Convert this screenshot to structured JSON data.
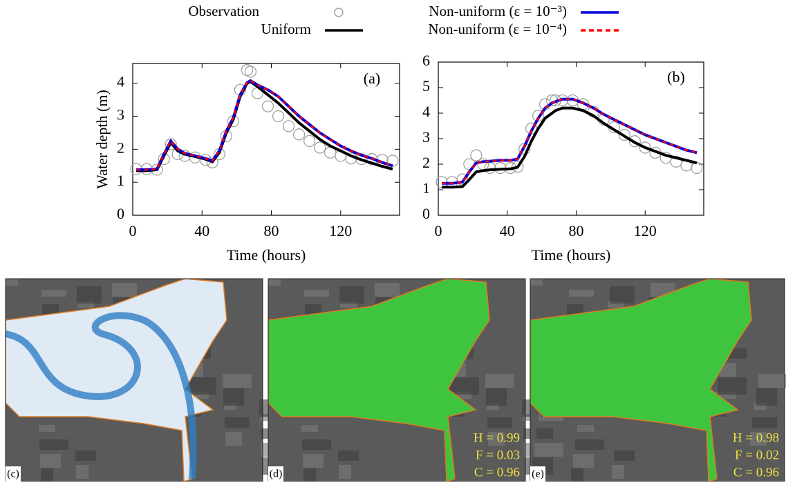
{
  "chart_data": [
    {
      "type": "line",
      "panel_label": "(a)",
      "y_label": "Water depth (m)",
      "x_label": "Time (hours)",
      "xlim": [
        0,
        154
      ],
      "xticks": [
        0,
        40,
        80,
        120
      ],
      "ylim": [
        0,
        4.6
      ],
      "yticks": [
        0,
        1,
        2,
        3,
        4
      ],
      "x": [
        2,
        8,
        14,
        18,
        22,
        26,
        30,
        36,
        42,
        46,
        50,
        54,
        58,
        62,
        66,
        68,
        72,
        78,
        84,
        90,
        96,
        102,
        108,
        114,
        120,
        126,
        132,
        138,
        144,
        150
      ],
      "series": [
        {
          "name": "Observation",
          "color": "#a0a0a0",
          "style": "markers",
          "values": [
            1.4,
            1.4,
            1.38,
            1.7,
            2.15,
            1.85,
            1.8,
            1.75,
            1.68,
            1.6,
            1.85,
            2.4,
            2.85,
            3.8,
            4.4,
            4.35,
            3.7,
            3.3,
            3.0,
            2.7,
            2.45,
            2.25,
            2.05,
            1.9,
            1.8,
            1.72,
            1.7,
            1.7,
            1.68,
            1.65
          ]
        },
        {
          "name": "Uniform",
          "color": "#000000",
          "style": "solid",
          "values": [
            1.35,
            1.35,
            1.38,
            1.8,
            2.2,
            1.95,
            1.85,
            1.78,
            1.7,
            1.62,
            1.9,
            2.5,
            2.9,
            3.6,
            4.0,
            4.05,
            3.9,
            3.65,
            3.4,
            3.1,
            2.8,
            2.55,
            2.3,
            2.1,
            1.95,
            1.8,
            1.68,
            1.58,
            1.48,
            1.4
          ]
        },
        {
          "name": "Non-uniform (ε = 10⁻³)",
          "color": "#0000dd",
          "style": "solid",
          "values": [
            1.38,
            1.38,
            1.4,
            1.85,
            2.25,
            2.0,
            1.88,
            1.8,
            1.72,
            1.65,
            1.95,
            2.55,
            2.95,
            3.65,
            4.02,
            4.08,
            3.95,
            3.8,
            3.6,
            3.3,
            3.0,
            2.75,
            2.5,
            2.3,
            2.1,
            1.95,
            1.82,
            1.72,
            1.6,
            1.5
          ]
        },
        {
          "name": "Non-uniform (ε = 10⁻⁴)",
          "color": "#ff0000",
          "style": "dashed",
          "values": [
            1.38,
            1.38,
            1.4,
            1.85,
            2.25,
            2.0,
            1.88,
            1.8,
            1.72,
            1.65,
            1.95,
            2.55,
            2.95,
            3.65,
            4.02,
            4.08,
            3.95,
            3.8,
            3.6,
            3.3,
            3.0,
            2.75,
            2.5,
            2.3,
            2.1,
            1.95,
            1.82,
            1.72,
            1.6,
            1.5
          ]
        }
      ]
    },
    {
      "type": "line",
      "panel_label": "(b)",
      "x_label": "Time (hours)",
      "xlim": [
        0,
        154
      ],
      "xticks": [
        0,
        40,
        80,
        120
      ],
      "ylim": [
        0,
        6
      ],
      "yticks": [
        0,
        1,
        2,
        3,
        4,
        5,
        6
      ],
      "x": [
        2,
        8,
        14,
        18,
        22,
        26,
        30,
        36,
        42,
        46,
        50,
        54,
        58,
        62,
        66,
        68,
        72,
        78,
        84,
        90,
        96,
        102,
        108,
        114,
        120,
        126,
        132,
        138,
        144,
        150
      ],
      "series": [
        {
          "name": "Observation",
          "color": "#a0a0a0",
          "style": "markers",
          "values": [
            1.3,
            1.3,
            1.4,
            2.0,
            2.35,
            2.0,
            1.85,
            1.85,
            1.85,
            1.9,
            2.6,
            3.4,
            3.9,
            4.35,
            4.5,
            4.5,
            4.5,
            4.5,
            4.35,
            4.05,
            3.75,
            3.45,
            3.15,
            2.9,
            2.65,
            2.45,
            2.25,
            2.1,
            1.95,
            1.85
          ]
        },
        {
          "name": "Uniform",
          "color": "#000000",
          "style": "solid",
          "values": [
            1.1,
            1.1,
            1.12,
            1.4,
            1.7,
            1.75,
            1.78,
            1.8,
            1.82,
            1.88,
            2.3,
            2.9,
            3.4,
            3.8,
            4.0,
            4.1,
            4.2,
            4.2,
            4.1,
            3.9,
            3.6,
            3.35,
            3.1,
            2.85,
            2.65,
            2.5,
            2.35,
            2.25,
            2.15,
            2.05
          ]
        },
        {
          "name": "Non-uniform (ε = 10⁻³)",
          "color": "#0000dd",
          "style": "solid",
          "values": [
            1.25,
            1.25,
            1.3,
            1.7,
            2.05,
            2.1,
            2.12,
            2.15,
            2.15,
            2.2,
            2.7,
            3.3,
            3.8,
            4.2,
            4.4,
            4.45,
            4.55,
            4.55,
            4.4,
            4.2,
            3.95,
            3.75,
            3.55,
            3.35,
            3.15,
            3.0,
            2.85,
            2.7,
            2.55,
            2.45
          ]
        },
        {
          "name": "Non-uniform (ε = 10⁻⁴)",
          "color": "#ff0000",
          "style": "dashed",
          "values": [
            1.25,
            1.25,
            1.3,
            1.7,
            2.05,
            2.1,
            2.12,
            2.15,
            2.15,
            2.2,
            2.7,
            3.3,
            3.8,
            4.2,
            4.4,
            4.45,
            4.55,
            4.55,
            4.4,
            4.2,
            3.95,
            3.75,
            3.55,
            3.35,
            3.15,
            3.0,
            2.85,
            2.7,
            2.55,
            2.45
          ]
        }
      ]
    }
  ],
  "maps": [
    {
      "label": "(c)",
      "flood_color": "#dfeaf5"
    },
    {
      "label": "(d)",
      "flood_color": "#3ec43e",
      "stats": [
        "H = 0.99",
        "F = 0.03",
        "C = 0.96"
      ]
    },
    {
      "label": "(e)",
      "flood_color": "#3ec43e",
      "stats": [
        "H = 0.98",
        "F = 0.02",
        "C = 0.96"
      ]
    }
  ]
}
